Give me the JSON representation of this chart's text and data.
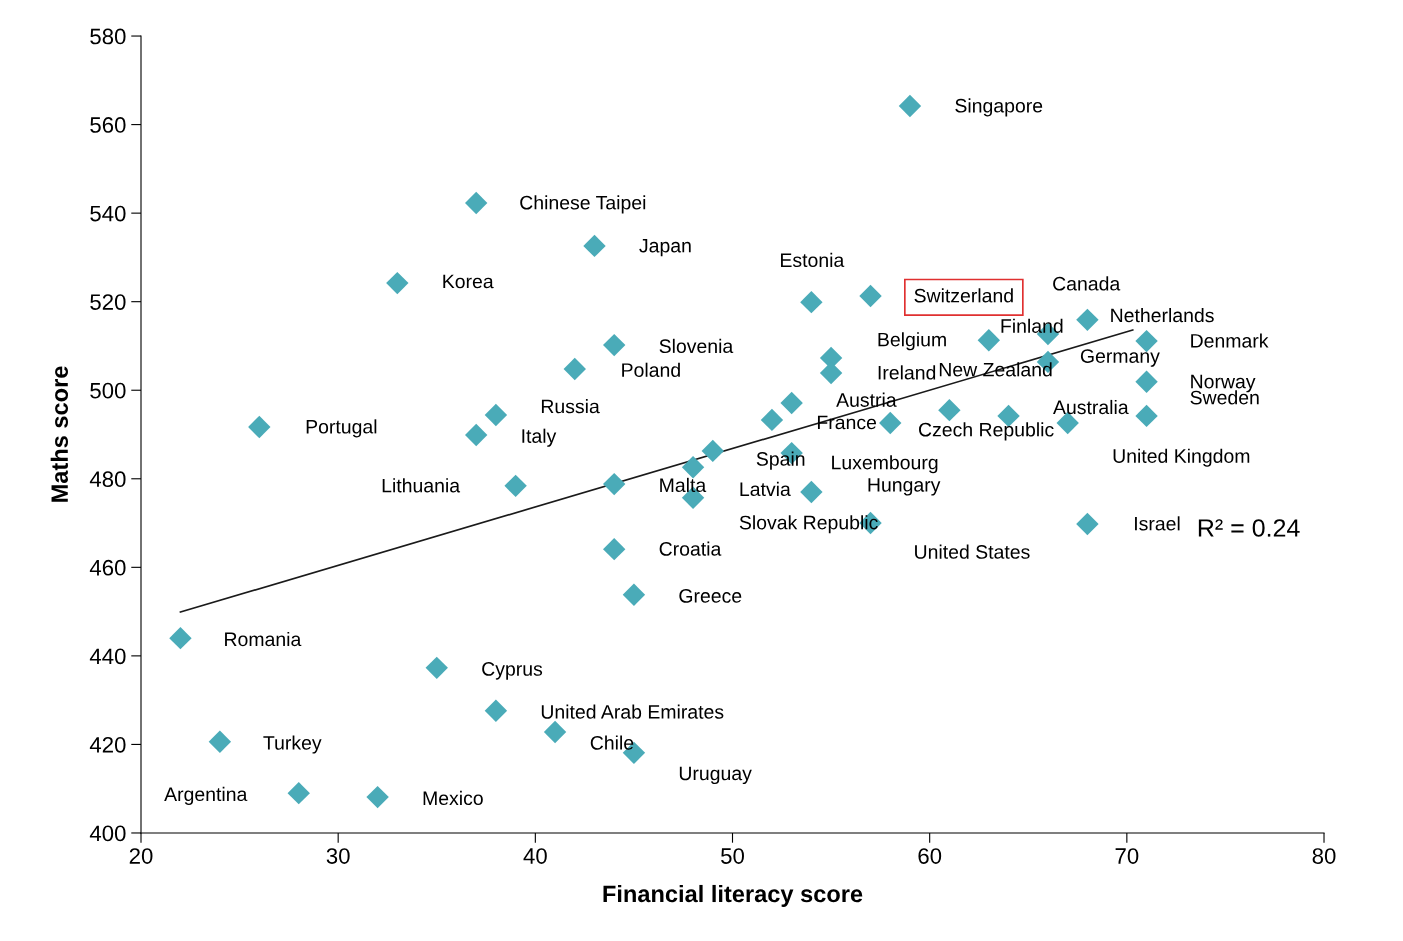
{
  "chart_data": {
    "type": "scatter",
    "xlabel": "Financial literacy score",
    "ylabel": "Maths score",
    "xlim": [
      20,
      80
    ],
    "xticks": [
      20,
      30,
      40,
      50,
      60,
      70,
      80
    ],
    "ylim": [
      400,
      580
    ],
    "yticks": [
      400,
      420,
      440,
      460,
      480,
      500,
      520,
      540,
      560,
      580
    ],
    "grid": false,
    "marker": "diamond",
    "series": [
      {
        "color": "#4aabb8",
        "x": [
          59,
          37,
          43,
          33,
          54,
          57,
          66,
          68,
          63,
          71,
          44,
          55,
          66,
          55,
          42,
          71,
          38,
          53,
          26,
          37,
          61,
          58,
          64,
          71,
          67,
          52,
          49,
          53,
          48,
          44,
          48,
          54,
          57,
          68,
          39,
          44,
          45,
          22,
          35,
          38,
          41,
          45,
          24,
          28,
          32
        ],
        "values": [
          564.2,
          542.3,
          532.6,
          524.2,
          519.9,
          521.3,
          512.7,
          515.9,
          511.3,
          511.1,
          510.2,
          507.3,
          506.4,
          503.9,
          504.8,
          501.9,
          494.4,
          497.1,
          491.7,
          489.9,
          495.5,
          492.6,
          494.2,
          494.2,
          492.6,
          493.3,
          486.3,
          485.8,
          482.6,
          478.8,
          475.7,
          477.0,
          470.0,
          469.8,
          478.4,
          464.1,
          453.8,
          444.0,
          437.3,
          427.6,
          422.8,
          418.1,
          420.6,
          409.0,
          408.1
        ]
      },
      {
        "type": "line",
        "color": "#1a1a1a",
        "x": [
          22,
          70.3
        ],
        "values": [
          449.9,
          513.6
        ],
        "marker": "none",
        "line_style": "solid"
      }
    ],
    "annotations": [
      {
        "text": "Singapore",
        "x": 59,
        "y": 564.2
      },
      {
        "text": "Chinese Taipei",
        "x": 37,
        "y": 542.3
      },
      {
        "text": "Japan",
        "x": 43,
        "y": 532.6
      },
      {
        "text": "Korea",
        "x": 33,
        "y": 524.2
      },
      {
        "text": "Estonia",
        "x": 54,
        "y": 519.9
      },
      {
        "text": "Switzerland",
        "x": 57,
        "y": 521.3
      },
      {
        "text": "Canada",
        "x": 66,
        "y": 512.7
      },
      {
        "text": "Netherlands",
        "x": 68,
        "y": 515.9
      },
      {
        "text": "Finland",
        "x": 63,
        "y": 511.3
      },
      {
        "text": "Denmark",
        "x": 71,
        "y": 511.1
      },
      {
        "text": "Slovenia",
        "x": 44,
        "y": 510.2
      },
      {
        "text": "Belgium",
        "x": 55,
        "y": 507.3
      },
      {
        "text": "Germany",
        "x": 66,
        "y": 506.4
      },
      {
        "text": "Ireland",
        "x": 55,
        "y": 503.9
      },
      {
        "text": "Poland",
        "x": 42,
        "y": 504.8
      },
      {
        "text": "Norway",
        "x": 71,
        "y": 501.9
      },
      {
        "text": "Russia",
        "x": 38,
        "y": 494.4
      },
      {
        "text": "Austria",
        "x": 53,
        "y": 497.1
      },
      {
        "text": "Portugal",
        "x": 26,
        "y": 491.7
      },
      {
        "text": "Italy",
        "x": 37,
        "y": 489.9
      },
      {
        "text": "New Zealand",
        "x": 61,
        "y": 495.5
      },
      {
        "text": "Czech Republic",
        "x": 58,
        "y": 492.6
      },
      {
        "text": "Australia",
        "x": 64,
        "y": 494.2
      },
      {
        "text": "Sweden",
        "x": 71,
        "y": 494.2
      },
      {
        "text": "United Kingdom",
        "x": 67,
        "y": 492.6
      },
      {
        "text": "France",
        "x": 52,
        "y": 493.3
      },
      {
        "text": "Spain",
        "x": 49,
        "y": 486.3
      },
      {
        "text": "Luxembourg",
        "x": 53,
        "y": 485.8
      },
      {
        "text": "Latvia",
        "x": 48,
        "y": 482.6
      },
      {
        "text": "Malta",
        "x": 44,
        "y": 478.8
      },
      {
        "text": "Slovak Republic",
        "x": 48,
        "y": 475.7
      },
      {
        "text": "Hungary",
        "x": 54,
        "y": 477.0
      },
      {
        "text": "United States",
        "x": 57,
        "y": 470.0
      },
      {
        "text": "Israel",
        "x": 68,
        "y": 469.8
      },
      {
        "text": "Lithuania",
        "x": 39,
        "y": 478.4
      },
      {
        "text": "Croatia",
        "x": 44,
        "y": 464.1
      },
      {
        "text": "Greece",
        "x": 45,
        "y": 453.8
      },
      {
        "text": "Romania",
        "x": 22,
        "y": 444.0
      },
      {
        "text": "Cyprus",
        "x": 35,
        "y": 437.3
      },
      {
        "text": "United Arab Emirates",
        "x": 38,
        "y": 427.6
      },
      {
        "text": "Chile",
        "x": 41,
        "y": 422.8
      },
      {
        "text": "Uruguay",
        "x": 45,
        "y": 418.1
      },
      {
        "text": "Turkey",
        "x": 24,
        "y": 420.6
      },
      {
        "text": "Argentina",
        "x": 28,
        "y": 409.0
      },
      {
        "text": "Mexico",
        "x": 32,
        "y": 408.1
      },
      "R² = 0.24"
    ]
  }
}
